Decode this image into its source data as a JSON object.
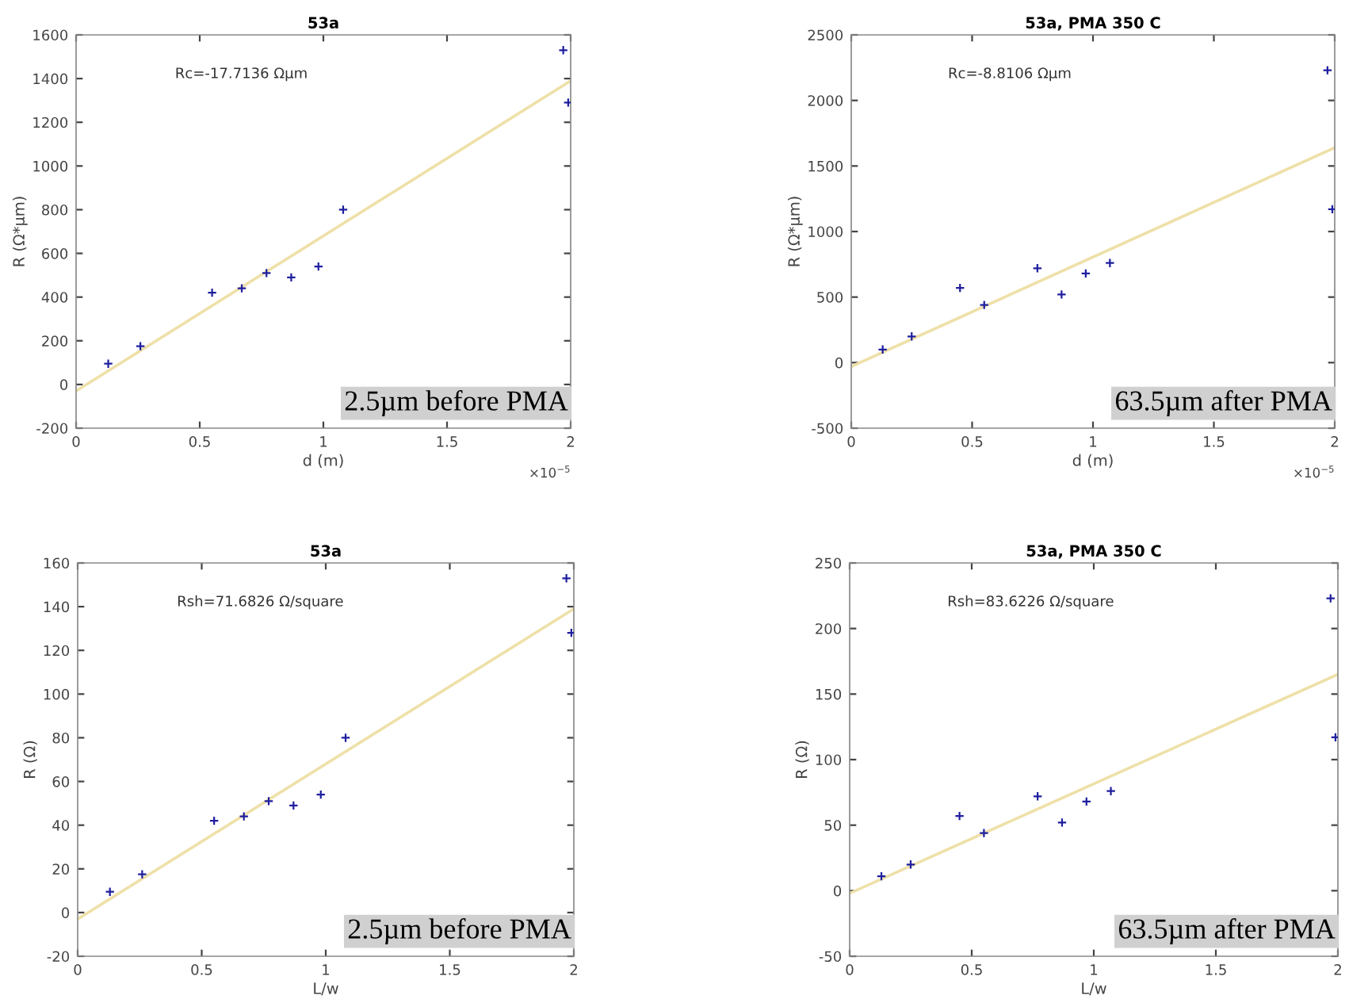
{
  "chart_data": [
    {
      "type": "scatter",
      "title": "53a",
      "xlabel": "d (m)",
      "ylabel": "R (Ω*μm)",
      "xlim": [
        0,
        2
      ],
      "xticks": [
        0,
        0.5,
        1,
        1.5,
        2
      ],
      "ylim": [
        -200,
        1600
      ],
      "yticks": [
        -200,
        0,
        200,
        400,
        600,
        800,
        1000,
        1200,
        1400,
        1600
      ],
      "grid": false,
      "annotations": [
        "Rc=-17.7136 Ωμm",
        "2.5µm before PMA",
        "×10$^{−5}$"
      ],
      "series": [
        {
          "marker": "cross",
          "color": "#1f1f9f",
          "x": [
            0.13,
            0.26,
            0.55,
            0.67,
            0.77,
            0.87,
            0.98,
            1.08,
            1.97,
            1.99
          ],
          "values": [
            95,
            175,
            420,
            440,
            510,
            490,
            540,
            800,
            1530,
            1290
          ]
        },
        {
          "type": "line",
          "marker": "none",
          "color": "#eee0a8",
          "x": [
            0,
            2
          ],
          "values": [
            -30,
            1390
          ]
        }
      ]
    },
    {
      "type": "scatter",
      "title": "53a, PMA 350 C",
      "xlabel": "d (m)",
      "ylabel": "R (Ω*μm)",
      "xlim": [
        0,
        2
      ],
      "xticks": [
        0,
        0.5,
        1,
        1.5,
        2
      ],
      "ylim": [
        -500,
        2500
      ],
      "yticks": [
        -500,
        0,
        500,
        1000,
        1500,
        2000,
        2500
      ],
      "grid": false,
      "annotations": [
        "Rc=-8.8106 Ωμm",
        "63.5µm after PMA",
        "×10$^{−5}$"
      ],
      "series": [
        {
          "marker": "cross",
          "color": "#1f1f9f",
          "x": [
            0.13,
            0.25,
            0.45,
            0.55,
            0.77,
            0.87,
            0.97,
            1.07,
            1.97,
            1.99
          ],
          "values": [
            100,
            200,
            570,
            440,
            720,
            520,
            680,
            760,
            2230,
            1170
          ]
        },
        {
          "type": "line",
          "marker": "none",
          "color": "#eee0a8",
          "x": [
            0,
            2
          ],
          "values": [
            -30,
            1640
          ]
        }
      ]
    },
    {
      "type": "scatter",
      "title": "53a",
      "xlabel": "L/w",
      "ylabel": "R (Ω)",
      "xlim": [
        0,
        2
      ],
      "xticks": [
        0,
        0.5,
        1,
        1.5,
        2
      ],
      "ylim": [
        -20,
        160
      ],
      "yticks": [
        -20,
        0,
        20,
        40,
        60,
        80,
        100,
        120,
        140,
        160
      ],
      "grid": false,
      "annotations": [
        "Rsh=71.6826 Ω/square",
        "2.5µm before PMA"
      ],
      "series": [
        {
          "marker": "cross",
          "color": "#1f1f9f",
          "x": [
            0.13,
            0.26,
            0.55,
            0.67,
            0.77,
            0.87,
            0.98,
            1.08,
            1.97,
            1.99
          ],
          "values": [
            9.5,
            17.5,
            42,
            44,
            51,
            49,
            54,
            80,
            153,
            128
          ]
        },
        {
          "type": "line",
          "marker": "none",
          "color": "#eee0a8",
          "x": [
            0,
            2
          ],
          "values": [
            -3,
            139
          ]
        }
      ]
    },
    {
      "type": "scatter",
      "title": "53a, PMA 350 C",
      "xlabel": "L/w",
      "ylabel": "R (Ω)",
      "xlim": [
        0,
        2
      ],
      "xticks": [
        0,
        0.5,
        1,
        1.5,
        2
      ],
      "ylim": [
        -50,
        250
      ],
      "yticks": [
        -50,
        0,
        50,
        100,
        150,
        200,
        250
      ],
      "grid": false,
      "annotations": [
        "Rsh=83.6226 Ω/square",
        "63.5µm after PMA"
      ],
      "series": [
        {
          "marker": "cross",
          "color": "#1f1f9f",
          "x": [
            0.13,
            0.25,
            0.45,
            0.55,
            0.77,
            0.87,
            0.97,
            1.07,
            1.97,
            1.99
          ],
          "values": [
            11,
            20,
            57,
            44,
            72,
            52,
            68,
            76,
            223,
            117
          ]
        },
        {
          "type": "line",
          "marker": "none",
          "color": "#eee0a8",
          "x": [
            0,
            2
          ],
          "values": [
            -2,
            165
          ]
        }
      ]
    }
  ]
}
